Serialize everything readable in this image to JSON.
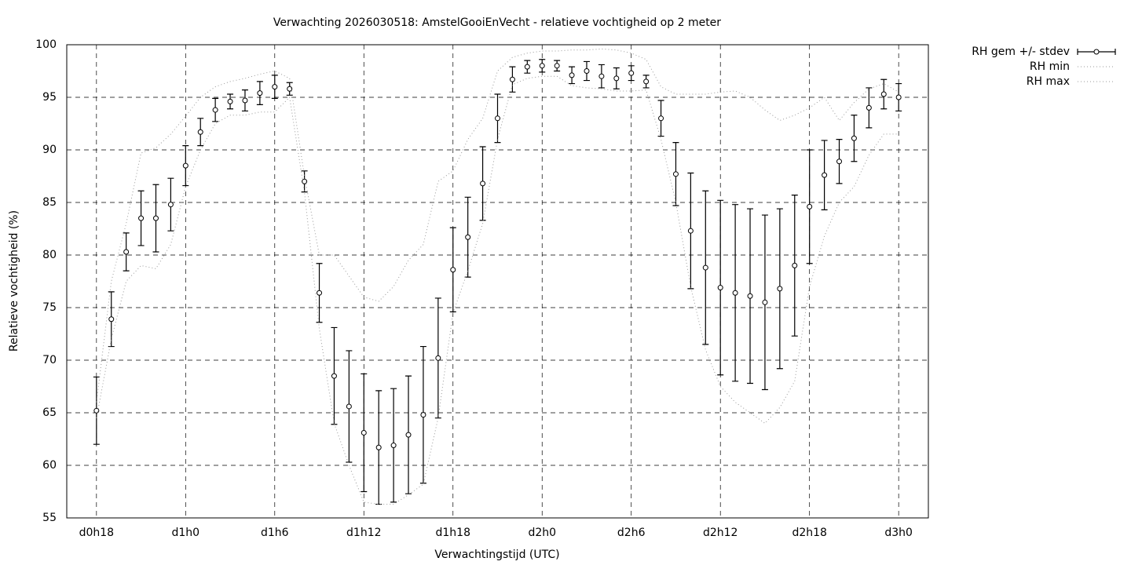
{
  "chart_data": {
    "type": "errorbar",
    "title": "Verwachting 2026030518: AmstelGooiEnVecht - relatieve vochtigheid op 2 meter",
    "xlabel": "Verwachtingstijd (UTC)",
    "ylabel": "Relatieve vochtigheid (%)",
    "x": [
      18,
      19,
      20,
      21,
      22,
      23,
      24,
      25,
      26,
      27,
      28,
      29,
      30,
      31,
      32,
      33,
      34,
      35,
      36,
      37,
      38,
      39,
      40,
      41,
      42,
      43,
      44,
      45,
      46,
      47,
      48,
      49,
      50,
      51,
      52,
      53,
      54,
      55,
      56,
      57,
      58,
      59,
      60,
      61,
      62,
      63,
      64,
      65,
      66,
      67,
      68,
      69,
      70,
      71,
      72
    ],
    "xlim": [
      16,
      74
    ],
    "xticks": [
      {
        "value": 18,
        "label": "d0h18"
      },
      {
        "value": 24,
        "label": "d1h0"
      },
      {
        "value": 30,
        "label": "d1h6"
      },
      {
        "value": 36,
        "label": "d1h12"
      },
      {
        "value": 42,
        "label": "d1h18"
      },
      {
        "value": 48,
        "label": "d2h0"
      },
      {
        "value": 54,
        "label": "d2h6"
      },
      {
        "value": 60,
        "label": "d2h12"
      },
      {
        "value": 66,
        "label": "d2h18"
      },
      {
        "value": 72,
        "label": "d3h0"
      }
    ],
    "ylim": [
      55,
      100
    ],
    "yticks": [
      55,
      60,
      65,
      70,
      75,
      80,
      85,
      90,
      95,
      100
    ],
    "grid": true,
    "legend": "outside-top-right",
    "series": [
      {
        "name": "RH gem +/- stdev",
        "color": "#000000",
        "style": "errorbar",
        "values": [
          65.2,
          73.9,
          80.3,
          83.5,
          83.5,
          84.8,
          88.5,
          91.7,
          93.8,
          94.6,
          94.7,
          95.4,
          96.0,
          95.8,
          87.0,
          76.4,
          68.5,
          65.6,
          63.1,
          61.7,
          61.9,
          62.9,
          64.8,
          70.2,
          78.6,
          81.7,
          86.8,
          93.0,
          96.7,
          97.9,
          98.0,
          98.0,
          97.1,
          97.5,
          97.0,
          96.8,
          97.3,
          96.5,
          93.0,
          87.7,
          82.3,
          78.8,
          76.9,
          76.4,
          76.1,
          75.5,
          76.8,
          79.0,
          84.6,
          87.6,
          88.9,
          91.1,
          94.0,
          95.3,
          95.0
        ],
        "errors": [
          3.2,
          2.6,
          1.8,
          2.6,
          3.2,
          2.5,
          1.9,
          1.3,
          1.1,
          0.7,
          1.0,
          1.1,
          1.1,
          0.6,
          1.0,
          2.8,
          4.6,
          5.3,
          5.6,
          5.4,
          5.4,
          5.6,
          6.5,
          5.7,
          4.0,
          3.8,
          3.5,
          2.3,
          1.2,
          0.6,
          0.6,
          0.5,
          0.8,
          0.9,
          1.1,
          1.0,
          0.7,
          0.6,
          1.7,
          3.0,
          5.5,
          7.3,
          8.3,
          8.4,
          8.3,
          8.3,
          7.6,
          6.7,
          5.4,
          3.3,
          2.1,
          2.2,
          1.9,
          1.4,
          1.3
        ]
      },
      {
        "name": "RH min",
        "color": "#999999",
        "style": "dotted",
        "values": [
          64.5,
          72,
          77.5,
          79,
          78.7,
          81,
          86.5,
          90,
          92.5,
          93.3,
          93.3,
          93.6,
          93.6,
          95,
          86,
          73,
          64,
          60,
          56.5,
          56.3,
          56.3,
          57.2,
          58.2,
          64.5,
          74.5,
          78.5,
          83,
          91,
          96.2,
          96.8,
          97,
          97,
          96.1,
          95.9,
          95.8,
          95.6,
          95.6,
          95.7,
          91,
          85,
          77,
          71,
          67.5,
          66,
          65,
          64,
          65.5,
          68,
          77,
          81.8,
          85,
          86.5,
          89.5,
          91.5,
          91.5
        ]
      },
      {
        "name": "RH max",
        "color": "#999999",
        "style": "dotted",
        "values": [
          66,
          77.5,
          83,
          89.7,
          90.2,
          91.5,
          93.2,
          95,
          96,
          96.5,
          96.8,
          97.2,
          97.5,
          96.8,
          87.5,
          80,
          80,
          78,
          76,
          75.6,
          77,
          79.5,
          81,
          87,
          88,
          91,
          93,
          97.5,
          98.8,
          99.2,
          99.4,
          99.4,
          99.5,
          99.5,
          99.6,
          99.5,
          99.2,
          98.6,
          96,
          95.3,
          95.3,
          95.3,
          95.5,
          95.6,
          95,
          93.8,
          92.8,
          93.3,
          94,
          95,
          92.8,
          94.5,
          95.8,
          96.3,
          95.5
        ]
      }
    ]
  }
}
